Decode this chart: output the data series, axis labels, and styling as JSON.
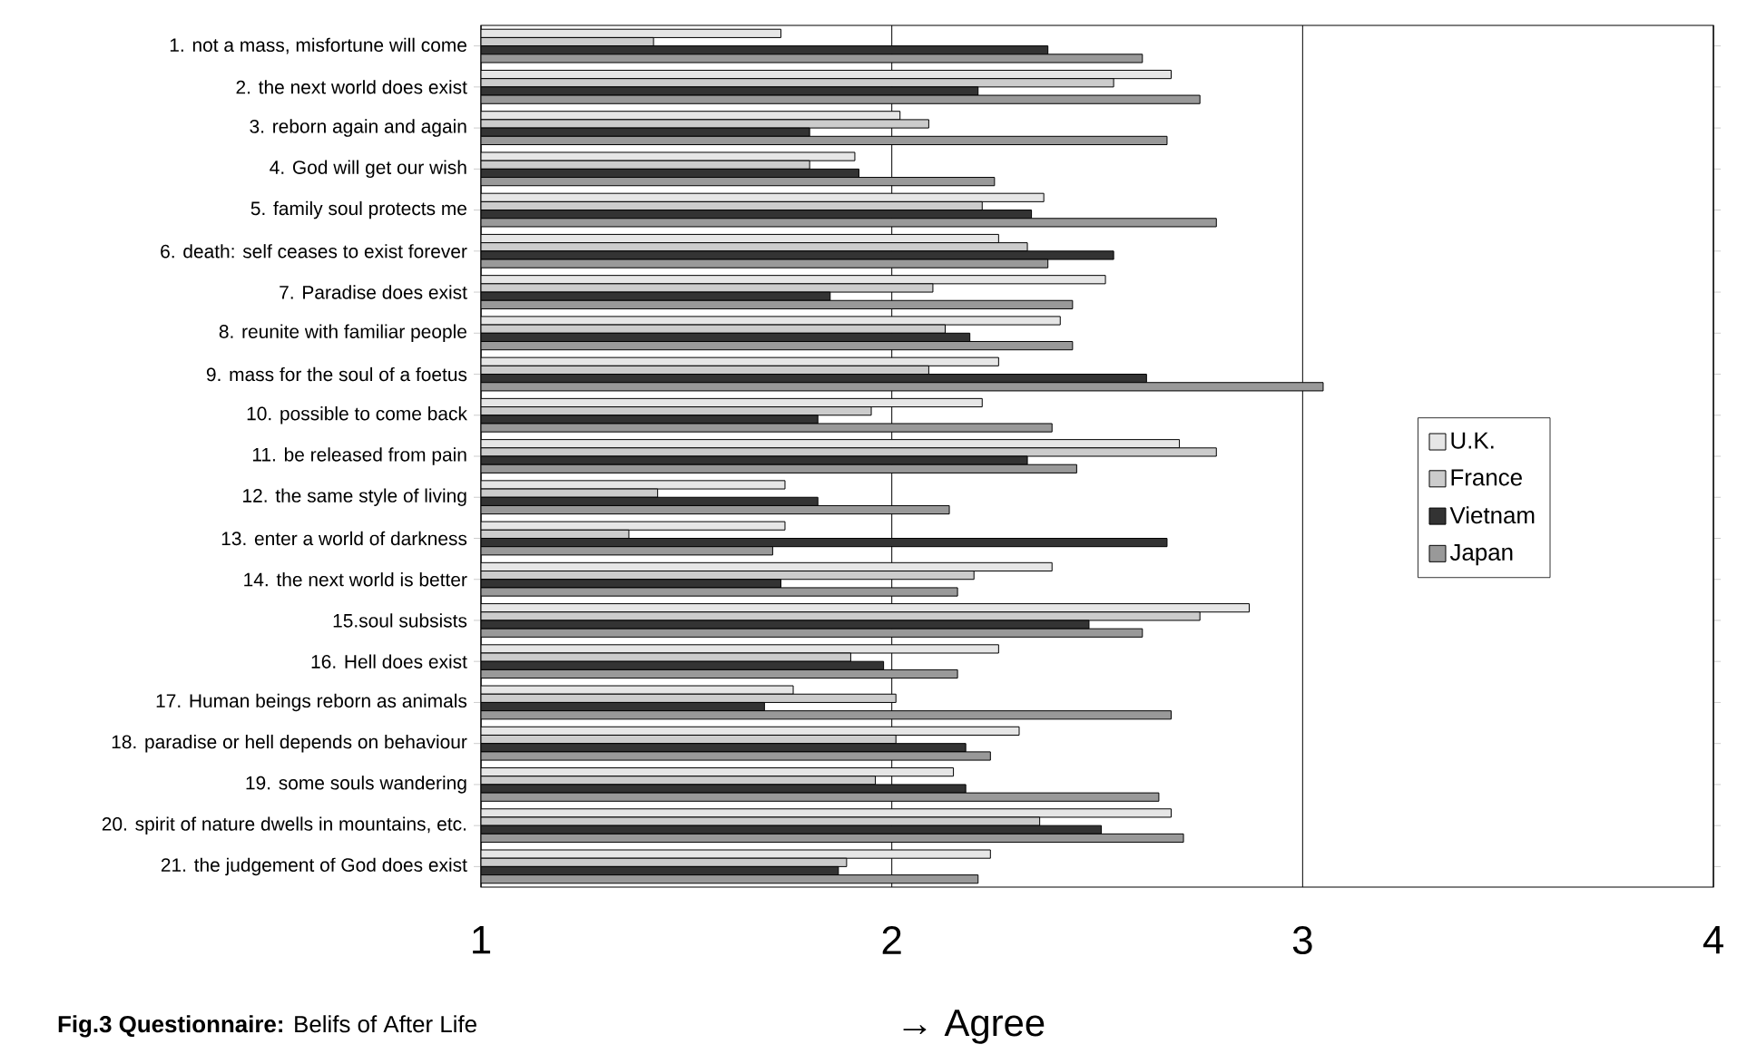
{
  "chart_data": {
    "type": "bar",
    "orientation": "horizontal",
    "title": "**Fig.3 Questionnaire:** Belifs of After Life",
    "annotations": [
      "→ Agree"
    ],
    "categories": [
      "1. not a mass, misfortune will come",
      "2. the next world does exist",
      "3. reborn again and again",
      "4. God will get our wish",
      "5. family soul protects me",
      "6. death: self ceases to exist forever",
      "7. Paradise does exist",
      "8. reunite with familiar people",
      "9. mass for the soul of a foetus",
      "10. possible to come back",
      "11. be released from pain",
      "12. the same style of living",
      "13. enter a world of darkness",
      "14. the next world is better",
      "15.soul subsists",
      "16. Hell does exist",
      "17. Human beings reborn as animals",
      "18. paradise or hell depends on behaviour",
      "19. some souls wandering",
      "20. spirit of nature dwells in mountains, etc.",
      "21. the judgement of God does exist"
    ],
    "series": [
      {
        "name": "U.K.",
        "color": "#e6e6e6",
        "values": [
          1.73,
          2.68,
          2.02,
          1.91,
          2.37,
          2.26,
          2.52,
          2.41,
          2.26,
          2.22,
          2.7,
          1.74,
          1.74,
          2.39,
          2.87,
          2.26,
          1.76,
          2.31,
          2.15,
          2.68,
          2.24
        ]
      },
      {
        "name": "France",
        "color": "#cccccc",
        "values": [
          1.42,
          2.54,
          2.09,
          1.8,
          2.22,
          2.33,
          2.1,
          2.13,
          2.09,
          1.95,
          2.79,
          1.43,
          1.36,
          2.2,
          2.75,
          1.9,
          2.01,
          2.01,
          1.96,
          2.36,
          1.89
        ]
      },
      {
        "name": "Vietnam",
        "color": "#333333",
        "values": [
          2.38,
          2.21,
          1.8,
          1.92,
          2.34,
          2.54,
          1.85,
          2.19,
          2.62,
          1.82,
          2.33,
          1.82,
          2.67,
          1.73,
          2.48,
          1.98,
          1.69,
          2.18,
          2.18,
          2.51,
          1.87
        ]
      },
      {
        "name": "Japan",
        "color": "#999999",
        "values": [
          2.61,
          2.75,
          2.67,
          2.25,
          2.79,
          2.38,
          2.44,
          2.44,
          3.05,
          2.39,
          2.45,
          2.14,
          1.71,
          2.16,
          2.61,
          2.16,
          2.68,
          2.24,
          2.65,
          2.71,
          2.21
        ]
      }
    ],
    "xlim": [
      1,
      4
    ],
    "xticks": [
      1,
      2,
      3,
      4
    ],
    "grid": "x",
    "legend": "right"
  }
}
